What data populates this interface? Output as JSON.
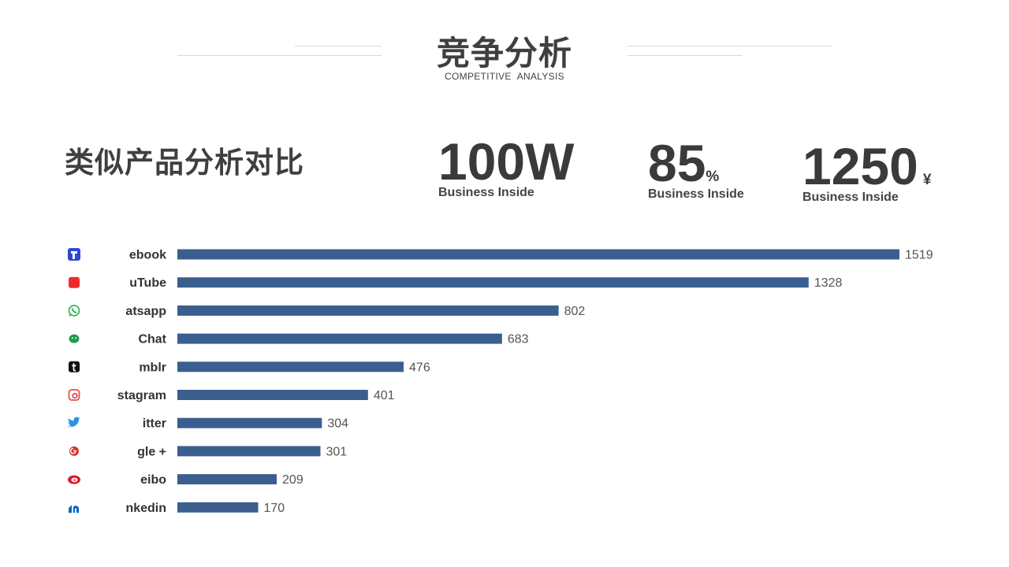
{
  "header": {
    "title": "竞争分析",
    "subtitle": "COMPETITIVE ANALYSIS"
  },
  "section": {
    "heading": "类似产品分析对比"
  },
  "stats": [
    {
      "value": "100W",
      "suffix": "",
      "label": "Business Inside"
    },
    {
      "value": "85",
      "suffix": "%",
      "label": "Business Inside"
    },
    {
      "value": "1250",
      "suffix": "¥",
      "label": "Business Inside"
    }
  ],
  "chart_data": {
    "type": "bar",
    "orientation": "horizontal",
    "categories": [
      "ebook",
      "uTube",
      "atsapp",
      "Chat",
      "mblr",
      "stagram",
      "itter",
      "gle +",
      "eibo",
      "nkedin"
    ],
    "values": [
      1519,
      1328,
      802,
      683,
      476,
      401,
      304,
      301,
      209,
      170
    ],
    "data_labels": [
      "1519",
      "1328",
      "802",
      "683",
      "476",
      "401",
      "304",
      "301",
      "209",
      "170"
    ],
    "icons": [
      "facebook-icon",
      "youtube-icon",
      "whatsapp-icon",
      "wechat-icon",
      "tumblr-icon",
      "instagram-icon",
      "twitter-icon",
      "google-plus-icon",
      "weibo-icon",
      "linkedin-icon"
    ],
    "icon_colors": [
      "#2f49d1",
      "#ee2b2b",
      "#25b34b",
      "#1e9b4e",
      "#111111",
      "#e8513f",
      "#2f8fe6",
      "#e0322f",
      "#e0192d",
      "#0a66c2"
    ],
    "bar_color": "#3a5f8f",
    "xlim": [
      0,
      1519
    ],
    "grid": false,
    "legend": "none",
    "title": "",
    "xlabel": "",
    "ylabel": ""
  }
}
